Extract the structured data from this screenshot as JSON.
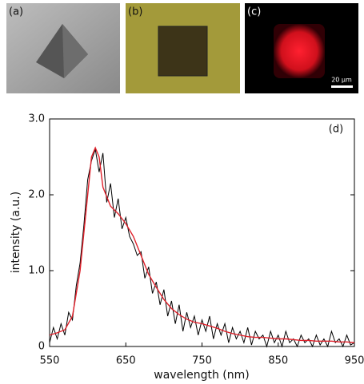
{
  "panels": [
    {
      "label": "(a)"
    },
    {
      "label": "(b)"
    },
    {
      "label": "(c)"
    }
  ],
  "scale_bar": "20 µm",
  "chart_data": {
    "type": "line",
    "annotation": "(d)",
    "x_label": "wavelength (nm)",
    "y_label": "intensity (a.u.)",
    "xlim": [
      550,
      950
    ],
    "ylim": [
      0,
      3
    ],
    "xticks": [
      550,
      650,
      750,
      850,
      950
    ],
    "yticks": [
      0,
      {
        "value": 1,
        "label": "1.0"
      },
      {
        "value": 2,
        "label": "2.0"
      },
      {
        "value": 3,
        "label": "3.0"
      }
    ],
    "series": [
      {
        "color": "#000000",
        "x": [
          550,
          555,
          560,
          565,
          570,
          575,
          580,
          585,
          590,
          595,
          600,
          605,
          610,
          615,
          620,
          625,
          630,
          635,
          640,
          645,
          650,
          655,
          660,
          665,
          670,
          675,
          680,
          685,
          690,
          695,
          700,
          705,
          710,
          715,
          720,
          725,
          730,
          735,
          740,
          745,
          750,
          755,
          760,
          765,
          770,
          775,
          780,
          785,
          790,
          795,
          800,
          805,
          810,
          815,
          820,
          825,
          830,
          835,
          840,
          845,
          850,
          855,
          860,
          865,
          870,
          875,
          880,
          885,
          890,
          895,
          900,
          905,
          910,
          915,
          920,
          925,
          930,
          935,
          940,
          945,
          950
        ],
        "values": [
          0.05,
          0.25,
          0.1,
          0.3,
          0.15,
          0.45,
          0.35,
          0.8,
          1.1,
          1.6,
          2.2,
          2.45,
          2.6,
          2.3,
          2.55,
          1.9,
          2.15,
          1.7,
          1.95,
          1.55,
          1.7,
          1.45,
          1.35,
          1.2,
          1.25,
          0.9,
          1.05,
          0.7,
          0.85,
          0.55,
          0.75,
          0.4,
          0.6,
          0.3,
          0.55,
          0.2,
          0.45,
          0.25,
          0.4,
          0.15,
          0.35,
          0.2,
          0.4,
          0.1,
          0.3,
          0.15,
          0.3,
          0.05,
          0.25,
          0.1,
          0.2,
          0.05,
          0.25,
          0.02,
          0.2,
          0.1,
          0.15,
          0,
          0.2,
          0.05,
          0.15,
          0,
          0.2,
          0.05,
          0.1,
          0,
          0.15,
          0.05,
          0.1,
          0,
          0.15,
          0.02,
          0.1,
          0,
          0.2,
          0.05,
          0.1,
          0,
          0.15,
          0.02,
          0.05
        ]
      },
      {
        "color": "#e0202a",
        "x": [
          550,
          560,
          570,
          580,
          590,
          600,
          605,
          610,
          615,
          620,
          630,
          640,
          650,
          660,
          670,
          680,
          690,
          700,
          710,
          720,
          730,
          740,
          750,
          760,
          770,
          780,
          790,
          800,
          810,
          820,
          830,
          840,
          850,
          860,
          870,
          880,
          890,
          900,
          910,
          920,
          930,
          940,
          950
        ],
        "values": [
          0.15,
          0.18,
          0.22,
          0.4,
          1.0,
          2.0,
          2.5,
          2.62,
          2.5,
          2.1,
          1.85,
          1.75,
          1.62,
          1.45,
          1.2,
          0.95,
          0.78,
          0.62,
          0.5,
          0.42,
          0.36,
          0.32,
          0.3,
          0.27,
          0.24,
          0.2,
          0.17,
          0.15,
          0.13,
          0.12,
          0.12,
          0.11,
          0.1,
          0.1,
          0.09,
          0.08,
          0.08,
          0.07,
          0.07,
          0.07,
          0.06,
          0.06,
          0.05
        ]
      }
    ]
  }
}
